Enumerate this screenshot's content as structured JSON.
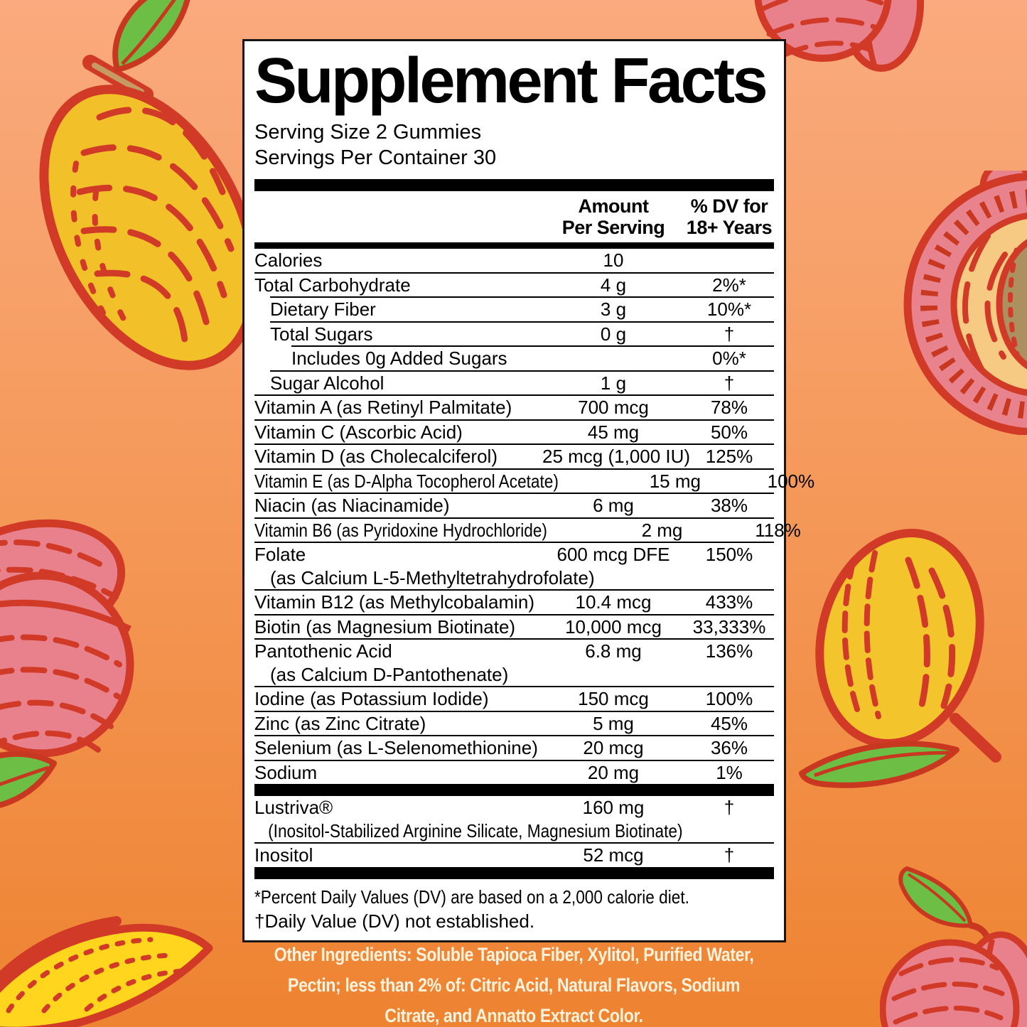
{
  "panel": {
    "title": "Supplement Facts",
    "serving_size": "Serving Size 2 Gummies",
    "servings_per_container": "Servings Per Container 30",
    "columns": {
      "amount_line1": "Amount",
      "amount_line2": "Per Serving",
      "dv_line1": "% DV for",
      "dv_line2": "18+ Years"
    },
    "rows_main": [
      {
        "name": "Calories",
        "amount": "10",
        "dv": "",
        "indent": 0
      },
      {
        "name": "Total Carbohydrate",
        "amount": "4 g",
        "dv": "2%*",
        "indent": 0
      },
      {
        "name": "Dietary Fiber",
        "amount": "3 g",
        "dv": "10%*",
        "indent": 1
      },
      {
        "name": "Total Sugars",
        "amount": "0 g",
        "dv": "†",
        "indent": 1
      },
      {
        "name": "Includes 0g Added Sugars",
        "amount": "",
        "dv": "0%*",
        "indent": 2
      },
      {
        "name": "Sugar Alcohol",
        "amount": "1 g",
        "dv": "†",
        "indent": 1
      },
      {
        "name": "Vitamin A (as Retinyl Palmitate)",
        "amount": "700 mcg",
        "dv": "78%",
        "indent": 0
      },
      {
        "name": "Vitamin C (Ascorbic Acid)",
        "amount": "45 mg",
        "dv": "50%",
        "indent": 0
      },
      {
        "name": "Vitamin D (as Cholecalciferol)",
        "amount": "25 mcg (1,000 IU)",
        "dv": "125%",
        "indent": 0
      },
      {
        "name": "Vitamin E (as D-Alpha Tocopherol Acetate)",
        "amount": "15 mg",
        "dv": "100%",
        "indent": 0
      },
      {
        "name": "Niacin (as Niacinamide)",
        "amount": "6 mg",
        "dv": "38%",
        "indent": 0
      },
      {
        "name": "Vitamin B6 (as Pyridoxine Hydrochloride)",
        "amount": "2 mg",
        "dv": "118%",
        "indent": 0
      },
      {
        "name": "Folate",
        "amount": "600 mcg DFE",
        "dv": "150%",
        "indent": 0,
        "subline": "(as Calcium L-5-Methyltetrahydrofolate)"
      },
      {
        "name": "Vitamin B12 (as Methylcobalamin)",
        "amount": "10.4 mcg",
        "dv": "433%",
        "indent": 0
      },
      {
        "name": "Biotin (as Magnesium Biotinate)",
        "amount": "10,000 mcg",
        "dv": "33,333%",
        "indent": 0
      },
      {
        "name": "Pantothenic Acid",
        "amount": "6.8 mg",
        "dv": "136%",
        "indent": 0,
        "subline": "(as Calcium D-Pantothenate)"
      },
      {
        "name": "Iodine (as Potassium Iodide)",
        "amount": "150 mcg",
        "dv": "100%",
        "indent": 0
      },
      {
        "name": "Zinc (as Zinc Citrate)",
        "amount": "5 mg",
        "dv": "45%",
        "indent": 0
      },
      {
        "name": "Selenium (as L-Selenomethionine)",
        "amount": "20 mcg",
        "dv": "36%",
        "indent": 0
      },
      {
        "name": "Sodium",
        "amount": "20 mg",
        "dv": "1%",
        "indent": 0
      }
    ],
    "rows_secondary": [
      {
        "name": "Lustriva®",
        "amount": "160 mg",
        "dv": "†",
        "indent": 0,
        "subline": "(Inositol-Stabilized Arginine Silicate, Magnesium Biotinate)"
      },
      {
        "name": "Inositol",
        "amount": "52 mcg",
        "dv": "†",
        "indent": 0
      }
    ],
    "footnotes": [
      "*Percent Daily Values (DV) are based on a 2,000 calorie diet.",
      "†Daily Value (DV) not established."
    ]
  },
  "other_ingredients": {
    "lines": [
      "Other Ingredients: Soluble Tapioca Fiber, Xylitol, Purified Water,",
      "Pectin; less than 2% of: Citric Acid, Natural Flavors, Sodium",
      "Citrate, and Annatto Extract Color."
    ]
  },
  "decorations": [
    "mango-illustration-top-left",
    "peach-illustration-top-right",
    "peach-half-illustration-right",
    "peach-illustration-left-middle",
    "mango-slice-illustration-bottom-left",
    "mango-illustration-bottom-right",
    "peach-illustration-bottom-right"
  ],
  "colors": {
    "background_top": "#FAAA7E",
    "background_bottom": "#EE8331",
    "panel_background": "#FFFFFF",
    "panel_border": "#161616",
    "text": "#000000",
    "fruit_outline_red": "#D03A27",
    "peach_pink": "#E8818C",
    "mango_yellow": "#F2C12A",
    "slice_yellow": "#FFD51E",
    "peach_flesh_yellow": "#F6CA82",
    "pit_brown": "#AD9060",
    "leaf_green": "#6CBE45",
    "other_ingredients_text": "#FBF2DC"
  }
}
